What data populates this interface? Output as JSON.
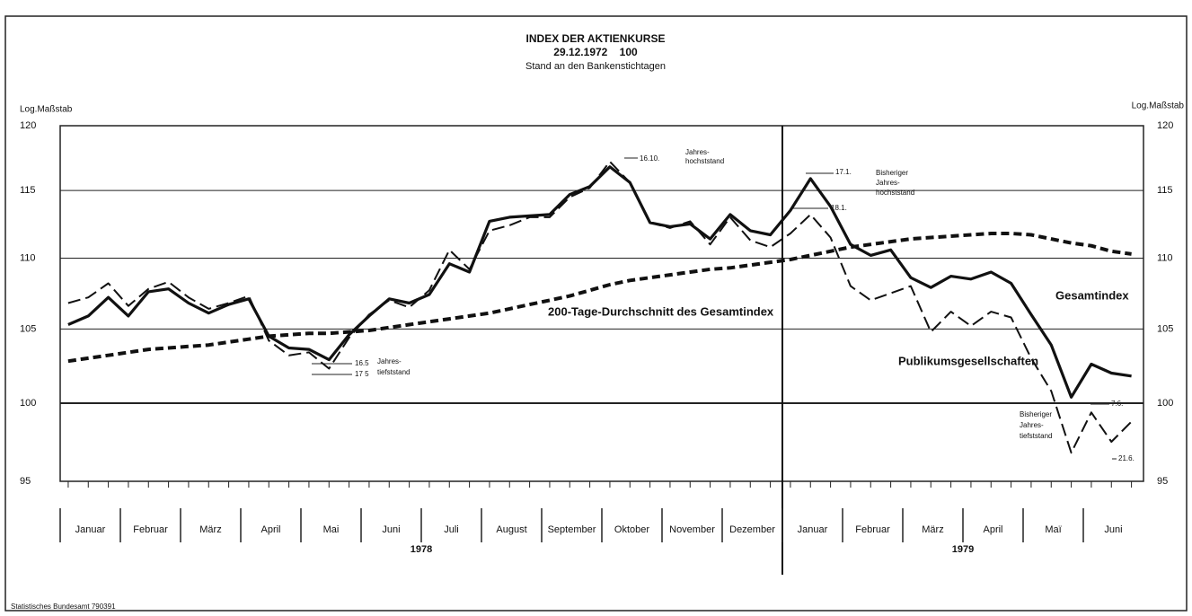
{
  "chart_data": {
    "type": "line",
    "title": "INDEX DER AKTIENKURSE",
    "subtitle": [
      "29.12.1972    100",
      "Stand an den Bankenstichtagen"
    ],
    "y_label": "Log.Maßstab",
    "log_scale": true,
    "grid": true,
    "ylim": [
      95,
      120
    ],
    "yticks": [
      95,
      100,
      105,
      110,
      115,
      120
    ],
    "categories": [
      null,
      null,
      null,
      null,
      null,
      null,
      null,
      null,
      null,
      null,
      null,
      null,
      null,
      null,
      null,
      null,
      null,
      null,
      null,
      null,
      null,
      null,
      null,
      null,
      null,
      null,
      null,
      null,
      null,
      null,
      null,
      null,
      null,
      null,
      null,
      null,
      null,
      null,
      null,
      null,
      null,
      null,
      null,
      null,
      null,
      null,
      null,
      null,
      null,
      null,
      null,
      null,
      null,
      null
    ],
    "months": [
      "Januar",
      "Februar",
      "März",
      "April",
      "Mai",
      "Juni",
      "Juli",
      "August",
      "September",
      "Oktober",
      "November",
      "Dezember",
      "Januar",
      "Februar",
      "März",
      "April",
      "Maï",
      "Juni"
    ],
    "years": [
      "1978",
      "1979"
    ],
    "series": [
      {
        "name": "Gesamtindex",
        "color": "#111111",
        "style": "solid",
        "values": [
          105.3,
          105.9,
          107.2,
          105.9,
          107.6,
          107.8,
          106.8,
          106.1,
          106.7,
          107.1,
          104.5,
          103.7,
          103.6,
          102.9,
          104.6,
          105.9,
          107.1,
          106.8,
          107.4,
          109.6,
          109.0,
          112.7,
          113.0,
          113.1,
          113.2,
          114.7,
          115.3,
          116.8,
          115.6,
          112.6,
          112.3,
          112.5,
          111.4,
          113.2,
          112.0,
          111.7,
          113.5,
          115.9,
          113.8,
          111.0,
          110.2,
          110.6,
          108.6,
          107.9,
          108.7,
          108.5,
          109.0,
          108.2,
          106.0,
          103.9,
          100.4,
          102.6,
          102.0,
          101.8
        ]
      },
      {
        "name": "Publikumsgesellschaften",
        "color": "#111111",
        "style": "dashed",
        "values": [
          106.8,
          107.2,
          108.2,
          106.6,
          107.8,
          108.3,
          107.2,
          106.4,
          106.8,
          107.3,
          104.2,
          103.2,
          103.4,
          102.3,
          104.4,
          106.0,
          107.0,
          106.5,
          107.7,
          110.6,
          109.2,
          112.0,
          112.4,
          113.0,
          113.0,
          114.5,
          115.2,
          117.2,
          115.6,
          112.6,
          112.2,
          112.7,
          111.0,
          113.0,
          111.3,
          110.8,
          111.8,
          113.2,
          111.5,
          108.0,
          107.0,
          107.5,
          108.0,
          104.8,
          106.2,
          105.2,
          106.2,
          105.8,
          103.0,
          100.8,
          96.8,
          99.4,
          97.5,
          98.8
        ]
      },
      {
        "name": "200-Tage-Durchschnitt des Gesamtindex",
        "color": "#111111",
        "style": "thickdash",
        "values": [
          102.8,
          103.0,
          103.2,
          103.4,
          103.6,
          103.7,
          103.8,
          103.9,
          104.1,
          104.3,
          104.5,
          104.6,
          104.7,
          104.7,
          104.8,
          104.9,
          105.1,
          105.3,
          105.5,
          105.7,
          105.9,
          106.1,
          106.4,
          106.7,
          107.0,
          107.3,
          107.7,
          108.1,
          108.4,
          108.6,
          108.8,
          109.0,
          109.2,
          109.3,
          109.5,
          109.7,
          109.9,
          110.2,
          110.5,
          110.8,
          111.0,
          111.2,
          111.4,
          111.5,
          111.6,
          111.7,
          111.8,
          111.8,
          111.7,
          111.4,
          111.1,
          110.9,
          110.5,
          110.3
        ]
      }
    ],
    "annotations": [
      [
        "16.10.",
        "Jahres-",
        "hochststand"
      ],
      [
        "17.1.",
        "Bisheriger",
        "Jahres-",
        "hochststand"
      ],
      [
        "18.1."
      ],
      [
        "16.5",
        "Jahres-",
        "17 5",
        "tiefststand"
      ],
      [
        "7.6."
      ],
      [
        "Bisheriger",
        "Jahres-",
        "tiefststand"
      ],
      [
        "21.6."
      ]
    ],
    "source": "Statistisches Bundesamt 790391"
  }
}
